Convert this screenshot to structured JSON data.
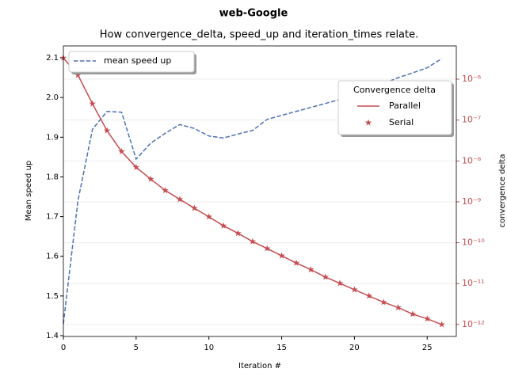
{
  "chart_data": {
    "type": "line",
    "title": "web-Google",
    "subtitle": "How convergence_delta, speed_up and iteration_times relate.",
    "xlabel": "Iteration #",
    "ylabel": "Mean speed up",
    "y2label": "convergence delta",
    "x": [
      0,
      1,
      2,
      3,
      4,
      5,
      6,
      7,
      8,
      9,
      10,
      11,
      12,
      13,
      14,
      15,
      16,
      17,
      18,
      19,
      20,
      21,
      22,
      23,
      24,
      25,
      26
    ],
    "xlim": [
      0,
      27
    ],
    "xticks": [
      0,
      5,
      10,
      15,
      20,
      25
    ],
    "ylim": [
      1.398,
      2.13
    ],
    "yticks": [
      1.4,
      1.5,
      1.6,
      1.7,
      1.8,
      1.9,
      {
        "value": 2,
        "label": "2.0"
      },
      2.1
    ],
    "y2lim": [
      5.1e-13,
      6.5e-06
    ],
    "y2log": true,
    "y2color": "#c44e52",
    "y2ticks": [
      {
        "value": 1e-12,
        "label": "10⁻¹²"
      },
      {
        "value": 1e-11,
        "label": "10⁻¹¹"
      },
      {
        "value": 1e-10,
        "label": "10⁻¹⁰"
      },
      {
        "value": 1e-09,
        "label": "10⁻⁹"
      },
      {
        "value": 1e-08,
        "label": "10⁻⁸"
      },
      {
        "value": 1e-07,
        "label": "10⁻⁷"
      },
      {
        "value": 1e-06,
        "label": "10⁻⁶"
      }
    ],
    "grid": "y2",
    "legend_title": "Convergence delta",
    "series": [
      {
        "name": "mean speed up",
        "color": "#4c72b0",
        "style": "dashed",
        "values": [
          1.43,
          1.74,
          1.92,
          1.965,
          1.963,
          1.845,
          1.885,
          1.91,
          1.932,
          1.922,
          1.903,
          1.898,
          1.908,
          1.917,
          1.945,
          1.955,
          1.965,
          1.975,
          1.985,
          1.995,
          2.005,
          2.02,
          2.035,
          2.05,
          2.062,
          2.075,
          2.098
        ]
      },
      {
        "name": "Parallel",
        "color": "#c44e52",
        "axis": "y2",
        "style": "solid",
        "values": [
          3.3e-06,
          1.26e-06,
          2.5e-07,
          5.5e-08,
          1.7e-08,
          7e-09,
          3.6e-09,
          1.9e-09,
          1.15e-09,
          7e-10,
          4.3e-10,
          2.6e-10,
          1.7e-10,
          1.07e-10,
          7.2e-11,
          4.8e-11,
          3.2e-11,
          2.2e-11,
          1.45e-11,
          1.02e-11,
          7.1e-12,
          5e-12,
          3.5e-12,
          2.6e-12,
          1.8e-12,
          1.38e-12,
          1e-12
        ]
      },
      {
        "name": "Serial",
        "color": "#c44e52",
        "axis": "y2",
        "style": "star",
        "values": [
          3.3e-06,
          1.26e-06,
          2.5e-07,
          5.5e-08,
          1.7e-08,
          7e-09,
          3.6e-09,
          1.9e-09,
          1.15e-09,
          7e-10,
          4.3e-10,
          2.6e-10,
          1.7e-10,
          1.07e-10,
          7.2e-11,
          4.8e-11,
          3.2e-11,
          2.2e-11,
          1.45e-11,
          1.02e-11,
          7.1e-12,
          5e-12,
          3.5e-12,
          2.6e-12,
          1.8e-12,
          1.38e-12,
          1e-12
        ]
      }
    ]
  }
}
